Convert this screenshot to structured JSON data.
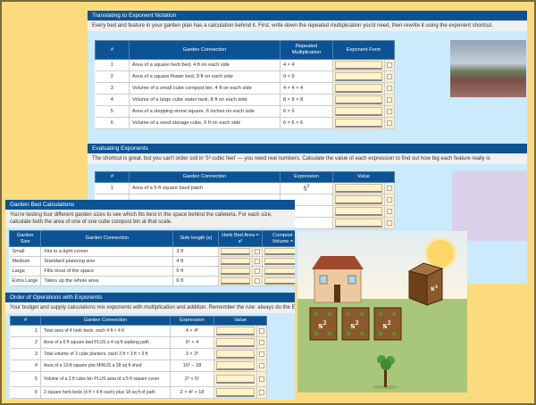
{
  "translating": {
    "title": "Translating to Exponent Notation",
    "description": "Every bed and feature in your garden plan has a calculation behind it. First, write down the repeated multiplication you'd need, then rewrite it using the exponent shortcut.",
    "headers": [
      "#",
      "Garden Connection",
      "Repeated Multiplication",
      "Exponent Form"
    ],
    "rows": [
      {
        "n": "1",
        "conn": "Area of a square herb bed, 4 ft on each side",
        "mult": "4 × 4"
      },
      {
        "n": "2",
        "conn": "Area of a square flower bed, 9 ft on each side",
        "mult": "9 × 9"
      },
      {
        "n": "3",
        "conn": "Volume of a small cube compost bin, 4 ft on each side",
        "mult": "4 × 4 × 4"
      },
      {
        "n": "4",
        "conn": "Volume of a large cube water tank, 8 ft on each side",
        "mult": "8 × 8 × 8"
      },
      {
        "n": "5",
        "conn": "Area of a stepping-stone square, 6 inches on each side",
        "mult": "6 × 6"
      },
      {
        "n": "6",
        "conn": "Volume of a seed storage cube, 6 ft on each side",
        "mult": "6 × 6 × 6"
      }
    ]
  },
  "evaluating": {
    "title": "Evaluating Exponents",
    "description": "The shortcut is great, but you can't order soil in '5³ cubic feet' — you need real numbers. Calculate the value of each expression to find out how big each feature really is",
    "headers": [
      "#",
      "Garden Connection",
      "Expression",
      "Value"
    ],
    "rows": [
      {
        "n": "1",
        "conn": "Area of a 5-ft square basil patch",
        "base": "5",
        "exp": "2"
      }
    ]
  },
  "bed_calc": {
    "title": "Garden Bed Calculations",
    "description": "You're testing four different garden sizes to see which fits best in the space behind the cafeteria. For each size, calculate both the area of one of one cube compost bin at that scale.",
    "headers": [
      "Garden Size",
      "Garden Connection",
      "Side length (s)",
      "Herb Bed Area = s²",
      "Compost Volume ="
    ],
    "rows": [
      {
        "size": "Small",
        "conn": "Fits in a tight corner",
        "side": "3 ft"
      },
      {
        "size": "Medium",
        "conn": "Standard planning size",
        "side": "4 ft"
      },
      {
        "size": "Large",
        "conn": "Fills most of the space",
        "side": "5 ft"
      },
      {
        "size": "Extra Large",
        "conn": "Takes up the whole area",
        "side": "6 ft"
      }
    ]
  },
  "order_ops": {
    "title": "Order of Operations with Exponents",
    "description": "Your budget and supply calculations mix exponents with multiplication and addition. Remember the rule: always do the EXPONENT",
    "headers": [
      "#",
      "Garden Connection",
      "Expression",
      "Value"
    ],
    "rows": [
      {
        "n": "1",
        "conn": "Total area of 4 herb beds, each 4 ft × 4 ft",
        "expr": "4 × 4²"
      },
      {
        "n": "2",
        "conn": "Area of a 6 ft square bed PLUS a 4 sq ft walking path",
        "expr": "6² + 4"
      },
      {
        "n": "3",
        "conn": "Total volume of 3 cube planters, each 3 ft × 3 ft × 3 ft",
        "expr": "3 × 3³"
      },
      {
        "n": "4",
        "conn": "Area of a 10-ft square plot MINUS a 28 sq ft shed",
        "expr": "10² − 28"
      },
      {
        "n": "5",
        "conn": "Volume of a 2 ft cube bin PLUS area of a 5 ft square cover",
        "expr": "2³ + 5²"
      },
      {
        "n": "6",
        "conn": "2 square herb beds (4 ft × 4 ft each) plus 18 sq ft of path",
        "expr": "2 × 4² + 18"
      }
    ]
  },
  "illustration": {
    "bed_label": "s",
    "bed_exp": "2",
    "bin_label": "s",
    "bin_exp": "3"
  },
  "colors": {
    "header_blue": "#0b5394",
    "input_fill": "#fff2cc",
    "panel_blue": "#cbeafc",
    "frame_yellow": "#fcdb7e"
  }
}
